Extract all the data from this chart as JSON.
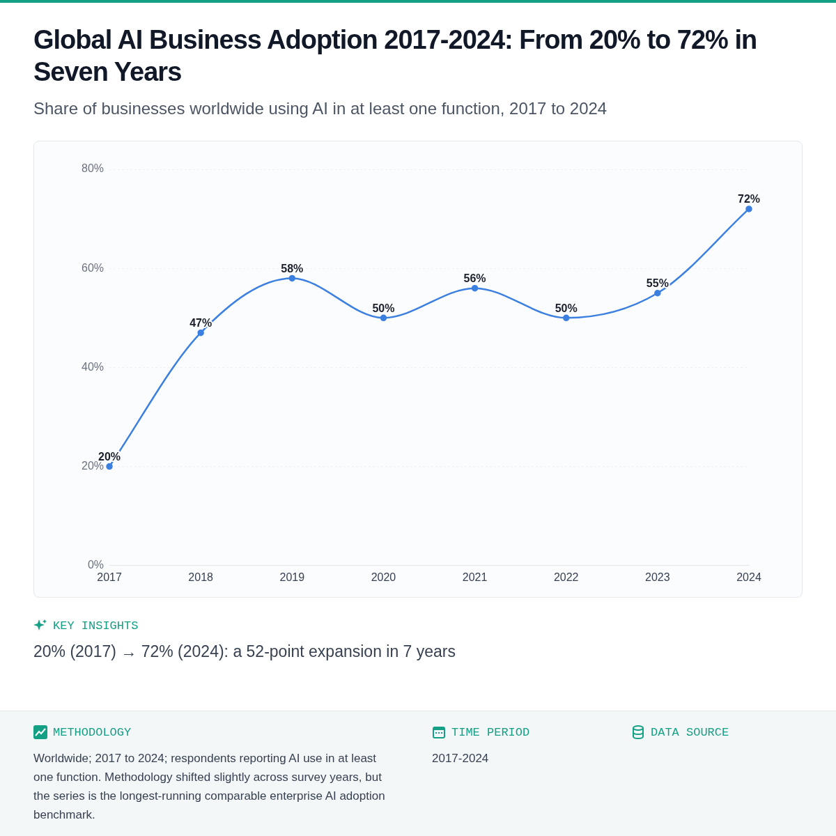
{
  "chart_data": {
    "type": "line",
    "title": "Global AI Business Adoption 2017-2024: From 20% to 72% in Seven Years",
    "subtitle": "Share of businesses worldwide using AI in at least one function, 2017 to 2024",
    "categories": [
      "2017",
      "2018",
      "2019",
      "2020",
      "2021",
      "2022",
      "2023",
      "2024"
    ],
    "series": [
      {
        "color": "#3b7fe0",
        "values": [
          20,
          47,
          58,
          50,
          56,
          50,
          55,
          72
        ],
        "value_labels": [
          "20%",
          "47%",
          "58%",
          "50%",
          "56%",
          "50%",
          "55%",
          "72%"
        ]
      }
    ],
    "ylim": [
      0,
      80
    ],
    "yticks": [
      {
        "value": 0,
        "label": "0%"
      },
      {
        "value": 20,
        "label": "20%"
      },
      {
        "value": 40,
        "label": "40%"
      },
      {
        "value": 60,
        "label": "60%"
      },
      {
        "value": 80,
        "label": "80%"
      }
    ],
    "grid": "y",
    "legend": false,
    "marker": "circle",
    "line_style": "solid",
    "annotations": [
      "KEY INSIGHTS",
      "20% (2017) → 72% (2024): a 52-point expansion in 7 years",
      "METHODOLOGY",
      "Worldwide; 2017 to 2024; respondents reporting AI use in at least one function. Methodology shifted slightly across survey years, but the series is the longest-running comparable enterprise AI adoption benchmark.",
      "TIME PERIOD",
      "2017-2024",
      "DATA SOURCE"
    ]
  }
}
